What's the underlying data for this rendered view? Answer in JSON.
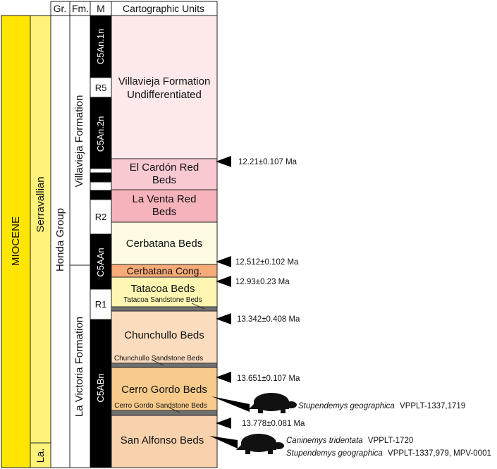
{
  "headers": {
    "group": "Gr.",
    "formation": "Fm.",
    "magnetostratigraphy": "M",
    "units": "Cartographic Units"
  },
  "epoch": {
    "label": "MIOCENE",
    "color": "#ffe600"
  },
  "stage": {
    "upper": "Serravallian",
    "lower": "La.",
    "color": "#fff27a"
  },
  "group": {
    "label": "Honda Group"
  },
  "formations": {
    "upper": "Villavieja Formation",
    "lower": "La Victoria Formation"
  },
  "chrons": [
    "C5An.1n",
    "R5",
    "C5An.2n",
    "R2",
    "C5AAn",
    "R1",
    "C5ABn"
  ],
  "units": [
    {
      "name": "Villavieja Formation Undifferentiated",
      "lines": [
        "Villavieja Formation",
        "Undifferentiated"
      ],
      "color": "#fde9ea"
    },
    {
      "name": "El Cardón Red Beds",
      "lines": [
        "El Cardón Red",
        "Beds"
      ],
      "color": "#f9c9d2"
    },
    {
      "name": "La Venta Red Beds",
      "lines": [
        "La Venta Red",
        "Beds"
      ],
      "color": "#f6b3bb"
    },
    {
      "name": "Cerbatana Beds",
      "lines": [
        "Cerbatana Beds"
      ],
      "color": "#fefbe0"
    },
    {
      "name": "Cerbatana Cong.",
      "lines": [
        "Cerbatana Cong."
      ],
      "color": "#f7ab78"
    },
    {
      "name": "Tatacoa Beds",
      "lines": [
        "Tatacoa Beds"
      ],
      "color": "#fef6b2"
    },
    {
      "name": "Tatacoa Sandstone Beds",
      "lines": [
        "Tatacoa Sandstone Beds"
      ],
      "color": "#fef6b2"
    },
    {
      "name": "Chunchullo Beds",
      "lines": [
        "Chunchullo Beds"
      ],
      "color": "#fbdcbe"
    },
    {
      "name": "Chunchullo Sandstone Beds",
      "lines": [
        "Chunchullo Sandstone Beds"
      ],
      "color": "#fbdcbe"
    },
    {
      "name": "Cerro Gordo Beds",
      "lines": [
        "Cerro Gordo Beds"
      ],
      "color": "#f8cb8c"
    },
    {
      "name": "Cerro Gordo Sandstone Beds",
      "lines": [
        "Cerro Gordo Sandstone Beds"
      ],
      "color": "#f8cb8c"
    },
    {
      "name": "San Alfonso Beds",
      "lines": [
        "San Alfonso Beds"
      ],
      "color": "#f7d2ad"
    }
  ],
  "sandstone_color": "#707070",
  "dates": [
    "12.21±0.107 Ma",
    "12.512±0.102 Ma",
    "12.93±0.23 Ma",
    "13.342±0.408 Ma",
    "13.651±0.107 Ma",
    "13.778±0.081 Ma"
  ],
  "fossils": [
    {
      "taxa": [
        {
          "species": "Stupendemys geographica",
          "specimens": "VPPLT-1337,1719"
        }
      ]
    },
    {
      "taxa": [
        {
          "species": "Caninemys tridentata",
          "specimens": "VPPLT-1720"
        },
        {
          "species": "Stupendemys geographica",
          "specimens": "VPPLT-1337,979, MPV-0001"
        }
      ]
    }
  ]
}
